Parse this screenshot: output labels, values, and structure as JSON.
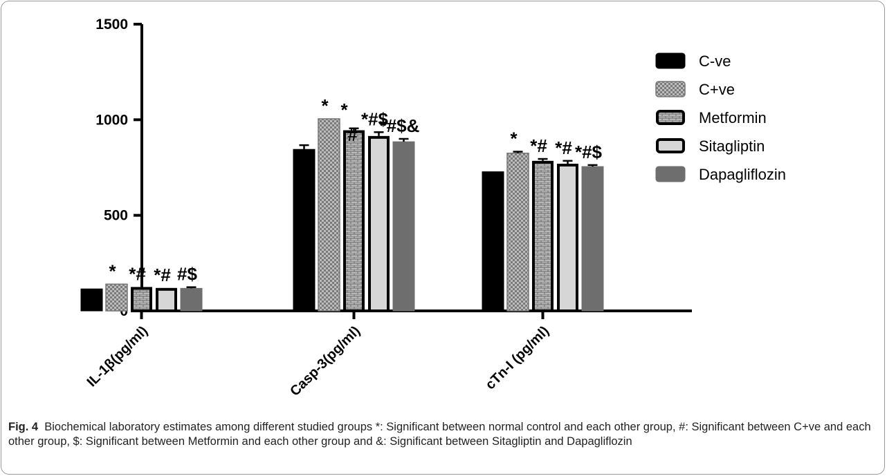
{
  "chart_data": {
    "type": "bar",
    "categories": [
      "IL-1β(pg/ml)",
      "Casp-3(pg/ml)",
      "cTn-I (pg/ml)"
    ],
    "series": [
      {
        "name": "C-ve",
        "values": [
          115,
          845,
          728
        ],
        "errors": [
          0,
          22,
          0
        ],
        "pattern": "solid",
        "color": "#000000"
      },
      {
        "name": "C+ve",
        "values": [
          140,
          1005,
          825
        ],
        "errors": [
          0,
          0,
          8
        ],
        "pattern": "checker",
        "color": "#888888"
      },
      {
        "name": "Metformin",
        "values": [
          125,
          945,
          785
        ],
        "errors": [
          0,
          10,
          10
        ],
        "pattern": "brick",
        "color": "#9a9a9a"
      },
      {
        "name": "Sitagliptin",
        "values": [
          120,
          915,
          770
        ],
        "errors": [
          0,
          20,
          15
        ],
        "pattern": "light",
        "color": "#d0d0d0"
      },
      {
        "name": "Dapagliflozin",
        "values": [
          118,
          885,
          755
        ],
        "errors": [
          6,
          15,
          8
        ],
        "pattern": "dark",
        "color": "#6f6f6f"
      }
    ],
    "annotations": [
      [
        "",
        "*",
        "*#",
        "*#",
        "#$"
      ],
      [
        "",
        "*",
        "*\n#",
        "*#$",
        "*#$&"
      ],
      [
        "",
        "*",
        "*#",
        "*#",
        "*#$"
      ]
    ],
    "yticks": [
      0,
      500,
      1000,
      1500
    ],
    "ylim": [
      0,
      1500
    ],
    "title": "",
    "xlabel": "",
    "ylabel": "",
    "legend_position": "right",
    "grid": false
  },
  "caption": {
    "label": "Fig. 4",
    "text": "Biochemical laboratory estimates among different studied groups *: Significant between normal control and each other group, #: Significant between C+ve and each other group, $: Significant between Metformin and each other group and &: Significant between Sitagliptin and Dapagliflozin"
  }
}
